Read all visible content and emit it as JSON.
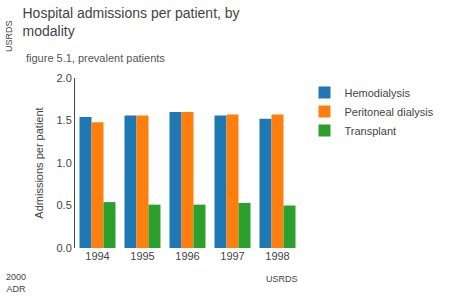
{
  "chart_data": {
    "type": "bar",
    "title": "Hospital admissions per patient, by\nmodality",
    "subtitle": "figure 5.1, prevalent patients",
    "ylabel": "Admissions per patient",
    "categories": [
      "1994",
      "1995",
      "1996",
      "1997",
      "1998"
    ],
    "series": [
      {
        "name": "Hemodialysis",
        "values": [
          1.54,
          1.56,
          1.6,
          1.56,
          1.52
        ]
      },
      {
        "name": "Peritoneal dialysis",
        "values": [
          1.48,
          1.56,
          1.6,
          1.57,
          1.57
        ]
      },
      {
        "name": "Transplant",
        "values": [
          0.54,
          0.51,
          0.51,
          0.53,
          0.5
        ]
      }
    ],
    "ylim": [
      0.0,
      2.0
    ],
    "yticks": [
      {
        "value": 0.0,
        "label": "0.0"
      },
      0.5,
      {
        "value": 1.0,
        "label": "1.0"
      },
      1.5,
      {
        "value": 2.0,
        "label": "2.0"
      }
    ],
    "grid": false,
    "legend": "right",
    "annotations": [
      {
        "text": "USRDS"
      },
      {
        "text": "2000\nADR"
      },
      {
        "text": "USRDS"
      }
    ]
  }
}
